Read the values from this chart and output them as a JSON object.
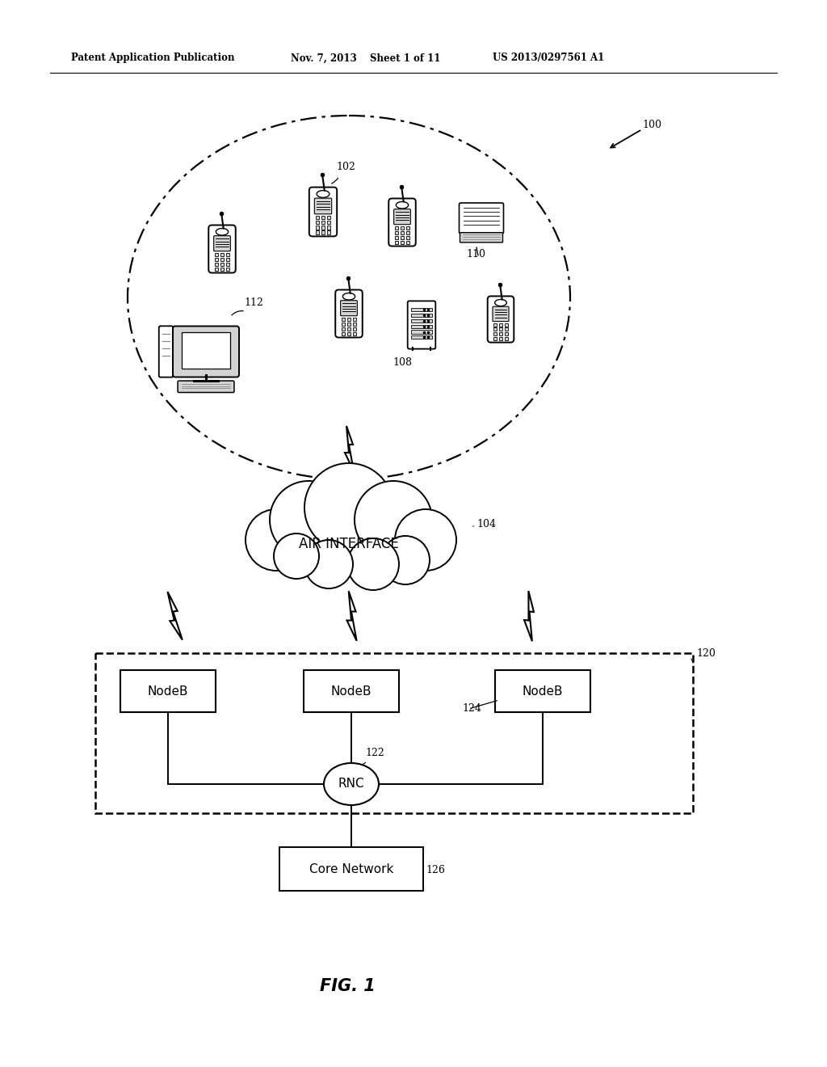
{
  "bg_color": "#ffffff",
  "header_left": "Patent Application Publication",
  "header_mid1": "Nov. 7, 2013",
  "header_mid2": "Sheet 1 of 11",
  "header_right": "US 2013/0297561 A1",
  "fig_label": "FIG. 1",
  "lbl_100": "100",
  "lbl_102": "102",
  "lbl_104": "104",
  "lbl_108": "108",
  "lbl_110": "110",
  "lbl_112": "112",
  "lbl_120": "120",
  "lbl_122": "122",
  "lbl_124": "124",
  "lbl_126": "126",
  "air_interface": "AIR INTERFACE",
  "nodeb": "NodeB",
  "rnc": "RNC",
  "core_network": "Core Network"
}
